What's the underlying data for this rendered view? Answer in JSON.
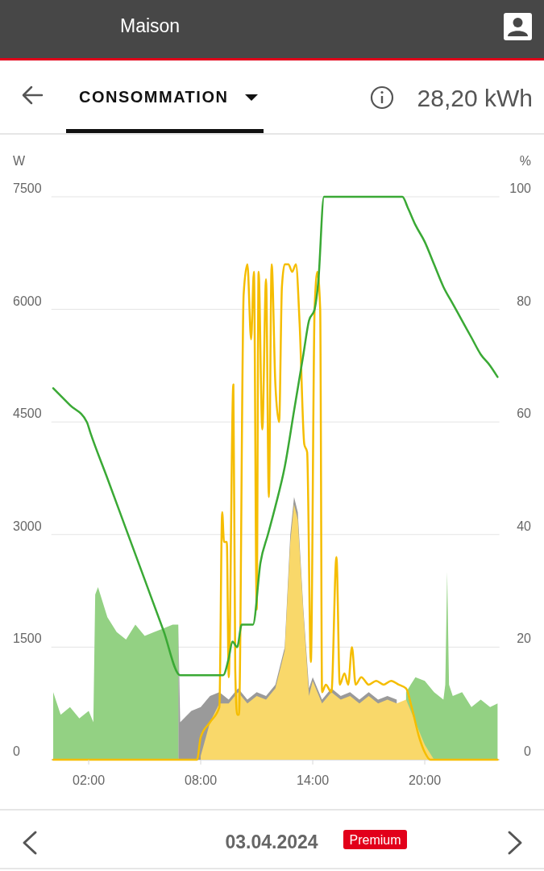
{
  "chart_data": {
    "type": "area",
    "title": "CONSOMMATION",
    "ylabel": "W",
    "y2label": "%",
    "annotations": [
      "Maison",
      "28,20 kWh",
      "03.04.2024",
      "Premium"
    ],
    "x": [
      0.1,
      0.5,
      1,
      1.5,
      2,
      2.25,
      2.35,
      2.5,
      3,
      3.5,
      4,
      4.5,
      5,
      5.5,
      6,
      6.5,
      6.8,
      6.9,
      7.5,
      8,
      8.5,
      9,
      9.5,
      10,
      10.5,
      11,
      11.5,
      12,
      12.5,
      12.8,
      13,
      13.2,
      13.5,
      13.8,
      14,
      14.5,
      15,
      15.5,
      16,
      16.5,
      17,
      17.5,
      18,
      18.5,
      19,
      19.5,
      20,
      20.5,
      21,
      21.1,
      21.2,
      21.3,
      21.5,
      22,
      22.5,
      23,
      23.5,
      23.9
    ],
    "series": [
      {
        "color": "#9a9a9a",
        "values": [
          null,
          null,
          null,
          null,
          null,
          null,
          null,
          null,
          null,
          null,
          null,
          null,
          null,
          null,
          null,
          null,
          1800,
          500,
          650,
          700,
          850,
          900,
          800,
          950,
          800,
          900,
          850,
          1000,
          1500,
          3000,
          3500,
          3300,
          2000,
          950,
          1100,
          800,
          950,
          850,
          900,
          800,
          900,
          800,
          850,
          800,
          null,
          null,
          null,
          null,
          null,
          null,
          null,
          null,
          null,
          null,
          null,
          null,
          null,
          null
        ]
      },
      {
        "color": "#93d183",
        "values": [
          900,
          600,
          700,
          550,
          650,
          500,
          2200,
          2300,
          1900,
          1700,
          1600,
          1800,
          1650,
          1700,
          1750,
          1800,
          1800,
          null,
          null,
          null,
          null,
          null,
          null,
          null,
          null,
          null,
          null,
          null,
          null,
          null,
          null,
          null,
          null,
          null,
          null,
          null,
          null,
          null,
          null,
          null,
          null,
          null,
          null,
          null,
          900,
          1100,
          1050,
          900,
          800,
          1000,
          2500,
          1000,
          850,
          900,
          700,
          800,
          700,
          750
        ]
      },
      {
        "color": "#f9d86a",
        "values": [
          null,
          null,
          null,
          null,
          null,
          null,
          null,
          null,
          null,
          null,
          null,
          null,
          null,
          null,
          null,
          null,
          null,
          null,
          null,
          50,
          500,
          750,
          750,
          900,
          750,
          850,
          800,
          950,
          1450,
          2900,
          3400,
          3200,
          1950,
          850,
          1050,
          750,
          900,
          800,
          850,
          750,
          850,
          750,
          800,
          750,
          800,
          500,
          200,
          0,
          null,
          null,
          null,
          null,
          null,
          null,
          null,
          null,
          null,
          null
        ]
      },
      {
        "type": "line",
        "color": "#f5bd00",
        "x": [
          0.1,
          7.8,
          8.0,
          8.5,
          9.0,
          9.15,
          9.25,
          9.4,
          9.5,
          9.75,
          9.85,
          9.95,
          10.05,
          10.3,
          10.5,
          10.7,
          10.85,
          11.0,
          11.1,
          11.3,
          11.5,
          11.65,
          11.8,
          12.0,
          12.2,
          12.35,
          12.5,
          12.7,
          12.9,
          13.1,
          13.3,
          13.55,
          13.7,
          13.9,
          14.1,
          14.25,
          14.4,
          14.5,
          14.7,
          15.0,
          15.27,
          15.45,
          15.7,
          15.9,
          16.1,
          16.3,
          16.6,
          17.0,
          17.4,
          17.8,
          18.2,
          18.6,
          19.0,
          19.3,
          19.7,
          20.0,
          20.3,
          23.9
        ],
        "values": [
          0,
          0,
          300,
          500,
          700,
          3300,
          2900,
          2900,
          1100,
          5000,
          1200,
          600,
          600,
          6200,
          6600,
          5600,
          6500,
          2000,
          6500,
          4400,
          6400,
          3500,
          6600,
          5000,
          4500,
          6300,
          6600,
          6600,
          6500,
          6600,
          5800,
          4200,
          4100,
          1300,
          6000,
          6500,
          6000,
          900,
          1000,
          900,
          2700,
          1000,
          1150,
          1000,
          1500,
          1000,
          1100,
          1000,
          1050,
          1000,
          1050,
          1000,
          950,
          700,
          300,
          100,
          0,
          0
        ]
      },
      {
        "type": "line",
        "axis": "y2",
        "color": "#3aa935",
        "x": [
          0.1,
          1.0,
          1.9,
          2.1,
          3,
          4,
          5,
          6,
          6.9,
          9.2,
          9.5,
          9.7,
          9.95,
          10.2,
          10.8,
          11.2,
          11.6,
          12,
          12.5,
          13,
          13.5,
          13.8,
          14.1,
          14.3,
          14.6,
          18.8,
          19.1,
          19.5,
          20,
          20.5,
          21,
          21.5,
          22,
          22.5,
          23,
          23.5,
          23.9
        ],
        "values": [
          66,
          63,
          60,
          58,
          50,
          41,
          32,
          23,
          15,
          15,
          18,
          21,
          20,
          24,
          24,
          35,
          40,
          45,
          52,
          62,
          72,
          78,
          80,
          85,
          100,
          100,
          98,
          95,
          92,
          88,
          84,
          81,
          78,
          75,
          72,
          70,
          68
        ]
      }
    ],
    "xlim": [
      0,
      24
    ],
    "xticks": [
      {
        "value": 2,
        "label": "02:00"
      },
      {
        "value": 8,
        "label": "08:00"
      },
      {
        "value": 14,
        "label": "14:00"
      },
      {
        "value": 20,
        "label": "20:00"
      }
    ],
    "ylim": [
      0,
      7500
    ],
    "yticks": [
      0,
      1500,
      3000,
      4500,
      6000,
      7500
    ],
    "y2lim": [
      0,
      100
    ],
    "y2ticks": [
      0,
      20,
      40,
      60,
      80,
      100
    ],
    "grid": "y",
    "line_style": "solid"
  }
}
